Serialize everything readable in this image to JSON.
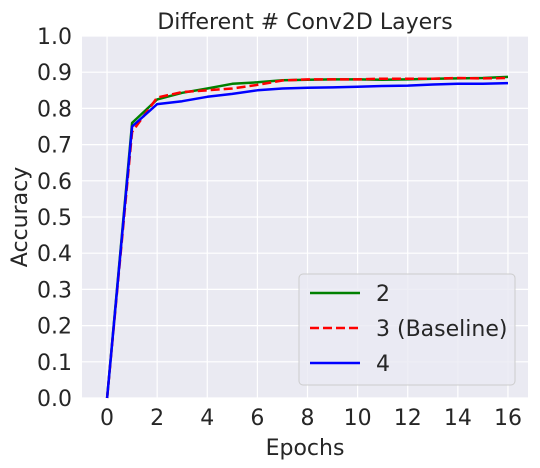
{
  "chart_data": {
    "type": "line",
    "title": "Different # Conv2D Layers",
    "xlabel": "Epochs",
    "ylabel": "Accuracy",
    "xlim": [
      -1,
      16.8
    ],
    "ylim": [
      0,
      1.0
    ],
    "xticks": [
      0,
      2,
      4,
      6,
      8,
      10,
      12,
      14,
      16
    ],
    "xtick_labels": [
      "0",
      "2",
      "4",
      "6",
      "8",
      "10",
      "12",
      "14",
      "16"
    ],
    "yticks": [
      0.0,
      0.1,
      0.2,
      0.3,
      0.4,
      0.5,
      0.6,
      0.7,
      0.8,
      0.9,
      1.0
    ],
    "ytick_labels": [
      "0.0",
      "0.1",
      "0.2",
      "0.3",
      "0.4",
      "0.5",
      "0.6",
      "0.7",
      "0.8",
      "0.9",
      "1.0"
    ],
    "grid": true,
    "legend_position": "bottom-right",
    "x": [
      0,
      1,
      2,
      3,
      4,
      5,
      6,
      7,
      8,
      9,
      10,
      11,
      12,
      13,
      14,
      15,
      16
    ],
    "series": [
      {
        "name": "2",
        "color": "#008000",
        "dash": "solid",
        "values": [
          0.0,
          0.76,
          0.825,
          0.843,
          0.855,
          0.868,
          0.872,
          0.878,
          0.879,
          0.88,
          0.88,
          0.879,
          0.88,
          0.882,
          0.883,
          0.884,
          0.887
        ]
      },
      {
        "name": "3 (Baseline)",
        "color": "#ff0000",
        "dash": "dashed",
        "values": [
          0.0,
          0.735,
          0.83,
          0.845,
          0.85,
          0.855,
          0.865,
          0.877,
          0.88,
          0.88,
          0.88,
          0.882,
          0.882,
          0.882,
          0.884,
          0.883,
          0.884
        ]
      },
      {
        "name": "4",
        "color": "#0000ff",
        "dash": "solid",
        "values": [
          0.0,
          0.75,
          0.812,
          0.82,
          0.832,
          0.84,
          0.85,
          0.855,
          0.857,
          0.858,
          0.86,
          0.862,
          0.863,
          0.866,
          0.868,
          0.868,
          0.87
        ]
      }
    ]
  }
}
